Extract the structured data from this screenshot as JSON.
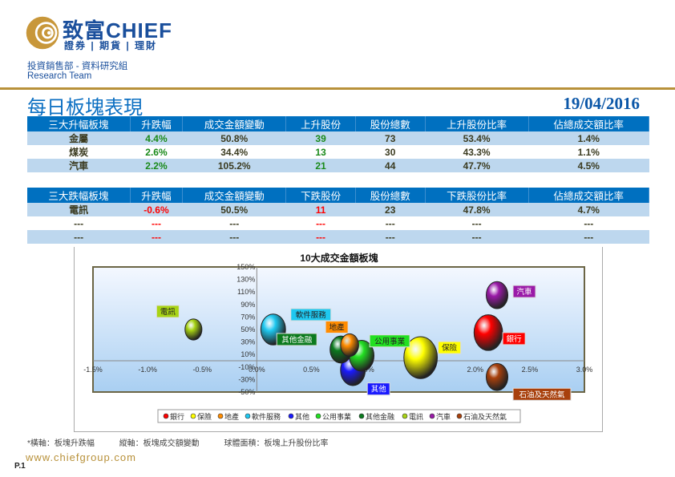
{
  "header": {
    "brand": "致富CHIEF",
    "brand_sub": "證券 | 期貨 | 理財",
    "department": "投資銷售部 - 資料研究組",
    "team": "Research Team",
    "title": "每日板塊表現",
    "date": "19/04/2016"
  },
  "colors": {
    "header_bg": "#0070c0",
    "row_light": "#bdd7ee",
    "up": "#1a8a1a",
    "down": "#ff0000",
    "gold": "#b8913a"
  },
  "top_table": {
    "headers": [
      "三大升幅板塊",
      "升跌幅",
      "成交金額變動",
      "上升股份",
      "股份總數",
      "上升股份比率",
      "佔總成交額比率"
    ],
    "rows": [
      [
        "金屬",
        "4.4%",
        "50.8%",
        "39",
        "73",
        "53.4%",
        "1.4%"
      ],
      [
        "煤炭",
        "2.6%",
        "34.4%",
        "13",
        "30",
        "43.3%",
        "1.1%"
      ],
      [
        "汽車",
        "2.2%",
        "105.2%",
        "21",
        "44",
        "47.7%",
        "4.5%"
      ]
    ]
  },
  "bottom_table": {
    "headers": [
      "三大跌幅板塊",
      "升跌幅",
      "成交金額變動",
      "下跌股份",
      "股份總數",
      "下跌股份比率",
      "佔總成交額比率"
    ],
    "rows": [
      [
        "電訊",
        "-0.6%",
        "50.5%",
        "11",
        "23",
        "47.8%",
        "4.7%"
      ],
      [
        "---",
        "---",
        "---",
        "---",
        "---",
        "---",
        "---"
      ],
      [
        "---",
        "---",
        "---",
        "---",
        "---",
        "---",
        "---"
      ]
    ]
  },
  "chart_data": {
    "type": "bubble",
    "title": "10大成交金額板塊",
    "xlabel": "板塊升跌幅",
    "ylabel": "板塊成交額變動",
    "size_label": "板塊上升股份比率",
    "xlim": [
      -1.5,
      3.0
    ],
    "ylim": [
      -50,
      150
    ],
    "xticks": [
      "-1.5%",
      "-1.0%",
      "-0.5%",
      "0.0%",
      "0.5%",
      "1.0%",
      "1.5%",
      "2.0%",
      "2.5%",
      "3.0%"
    ],
    "yticks": [
      "150%",
      "130%",
      "110%",
      "90%",
      "70%",
      "50%",
      "30%",
      "10%",
      "-10%",
      "-30%",
      "-50%"
    ],
    "legend_position": "bottom",
    "series": [
      {
        "name": "銀行",
        "x": 2.12,
        "y": 45,
        "size": 40,
        "color": "#ff0000"
      },
      {
        "name": "保險",
        "x": 1.5,
        "y": 5,
        "size": 55,
        "color": "#ffff00"
      },
      {
        "name": "地產",
        "x": 0.85,
        "y": 25,
        "size": 16,
        "color": "#ff8c00"
      },
      {
        "name": "軟件服務",
        "x": 0.15,
        "y": 50,
        "size": 30,
        "color": "#1ec8f0"
      },
      {
        "name": "其他",
        "x": 0.88,
        "y": -15,
        "size": 30,
        "color": "#1a1aff"
      },
      {
        "name": "公用事業",
        "x": 0.96,
        "y": 8,
        "size": 30,
        "color": "#22e022"
      },
      {
        "name": "其他金融",
        "x": 0.77,
        "y": 18,
        "size": 23,
        "color": "#0b7a1e"
      },
      {
        "name": "電訊",
        "x": -0.58,
        "y": 50,
        "size": 14,
        "color": "#a8d414"
      },
      {
        "name": "汽車",
        "x": 2.2,
        "y": 105,
        "size": 23,
        "color": "#9a1aa8"
      },
      {
        "name": "石油及天然氣",
        "x": 2.2,
        "y": -26,
        "size": 23,
        "color": "#a8400c"
      }
    ]
  },
  "footer": {
    "note_x": "*橫軸：板塊升跌幅",
    "note_y": "縱軸：板塊成交額變動",
    "note_size": "球體面積：板塊上升股份比率",
    "website": "www.chiefgroup.com",
    "page": "P.1"
  }
}
